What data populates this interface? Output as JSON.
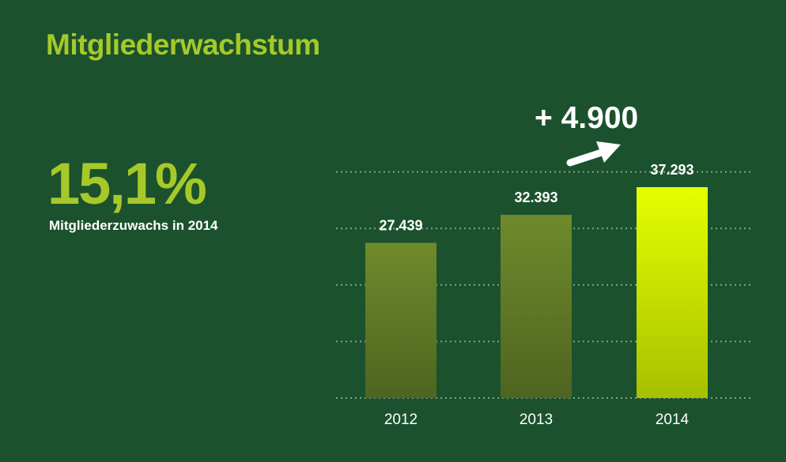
{
  "title": "Mitgliederwachstum",
  "kpi": {
    "value": "15,1%",
    "label": "Mitgliederzuwachs in 2014"
  },
  "delta": {
    "label": "+ 4.900"
  },
  "colors": {
    "background": "#1b522d",
    "accent": "#a6c929",
    "bar_past_top": "#6f8a2c",
    "bar_past_bottom": "#4f6420",
    "bar_current_top": "#e4ff00",
    "bar_current_bottom": "#a7c000",
    "gridline": "#7fa38a",
    "text": "#ffffff"
  },
  "chart_data": {
    "type": "bar",
    "categories": [
      "2012",
      "2013",
      "2014"
    ],
    "values": [
      27439,
      32393,
      37293
    ],
    "data_labels": [
      "27.439",
      "32.393",
      "37.293"
    ],
    "highlight_index": 2,
    "title": "",
    "xlabel": "",
    "ylabel": "",
    "ylim": [
      0,
      40000
    ],
    "grid": true,
    "legend": "none"
  }
}
